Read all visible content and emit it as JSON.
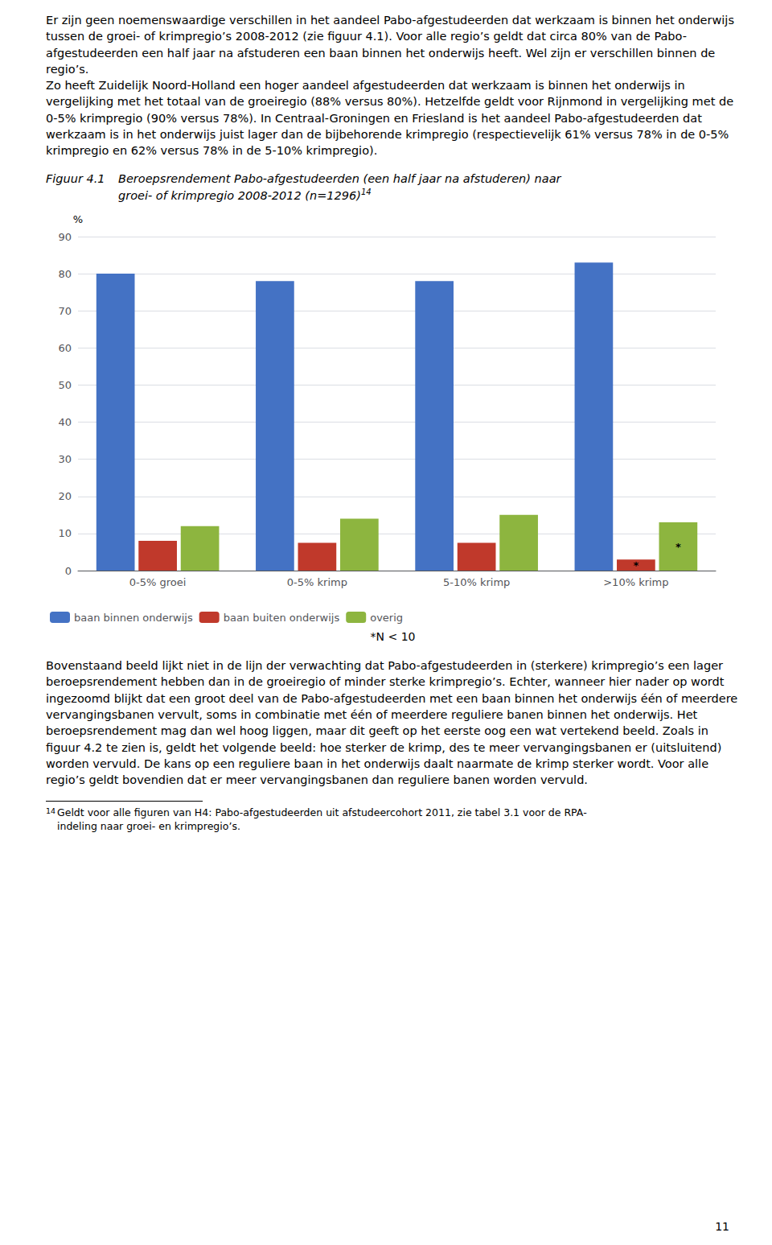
{
  "top_text": "Er zijn geen noemenswaardige verschillen in het aandeel Pabo-afgestudeerden dat werkzaam is binnen het onderwijs tussen de groei- of krimpregio’s 2008-2012 (zie figuur 4.1). Voor alle regio’s geldt dat circa 80% van de Pabo-afgestudeerden een half jaar na afstuderen een baan binnen het onderwijs heeft. Wel zijn er verschillen binnen de regio’s.\nZo heeft Zuidelijk Noord-Holland een hoger aandeel afgestudeerden dat werkzaam is binnen het onderwijs in vergelijking met het totaal van de groeiregio (88% versus 80%). Hetzelfde geldt voor Rijnmond in vergelijking met de 0-5% krimpregio (90% versus 78%). In Centraal-Groningen en Friesland is het aandeel Pabo-afgestudeerden dat werkzaam is in het onderwijs juist lager dan de bijbehorende krimpregio (respectievelijk 61% versus 78% in de 0-5% krimpregio en 62% versus 78% in de 5-10% krimpregio).",
  "bottom_text": "Bovenstaand beeld lijkt niet in de lijn der verwachting dat Pabo-afgestudeerden in (sterkere) krimpregio’s een lager beroepsrendement hebben dan in de groeiregio of minder sterke krimpregio’s. Echter, wanneer hier nader op wordt ingezoomd blijkt dat een groot deel van de Pabo-afgestudeerden met een baan binnen het onderwijs één of meerdere vervangingsbanen vervult, soms in combinatie met één of meerdere reguliere banen binnen het onderwijs. Het beroepsrendement mag dan wel hoog liggen, maar dit geeft op het eerste oog een wat vertekend beeld. Zoals in figuur 4.2 te zien is, geldt het volgende beeld: hoe sterker de krimp, des te meer vervangingsbanen er (uitsluitend) worden vervuld. De kans op een reguliere baan in het onderwijs daalt naarmate de krimp sterker wordt. Voor alle regio’s geldt bovendien dat er meer vervangingsbanen dan reguliere banen worden vervuld.",
  "footer_note": "14",
  "footer_text": "Geldt voor alle figuren van H4: Pabo-afgestudeerden uit afstudeercohort 2011, zie tabel 3.1 voor de RPA-\nindeling naar groei- en krimpregio’s.",
  "page_number": "11",
  "chart_data": {
    "type": "bar",
    "figure_label": "Figuur 4.1",
    "title_lines": [
      "Beroepsrendement Pabo-afgestudeerden (een half jaar na afstuderen) naar",
      "groei- of krimpregio 2008-2012 (n=1296)"
    ],
    "title_superscript": "14",
    "ylabel": "%",
    "note": "*N < 10",
    "categories": [
      "0-5% groei",
      "0-5% krimp",
      "5-10% krimp",
      ">10% krimp"
    ],
    "series": [
      {
        "name": "baan binnen onderwijs",
        "color": "#4472C4",
        "values": [
          80,
          78,
          78,
          83
        ]
      },
      {
        "name": "baan buiten onderwijs",
        "color": "#C0392B",
        "values": [
          8,
          7.5,
          7.5,
          3
        ]
      },
      {
        "name": "overig",
        "color": "#8DB53F",
        "values": [
          12,
          14,
          15,
          13
        ]
      }
    ],
    "annotations": [
      {
        "text": "*",
        "series": "baan buiten onderwijs",
        "category": ">10% krimp"
      },
      {
        "text": "*",
        "series": "overig",
        "category": ">10% krimp"
      }
    ],
    "ylim": [
      0,
      90
    ],
    "yticks": [
      0,
      10,
      20,
      30,
      40,
      50,
      60,
      70,
      80,
      90
    ],
    "grid": true,
    "legend": "bottom"
  }
}
